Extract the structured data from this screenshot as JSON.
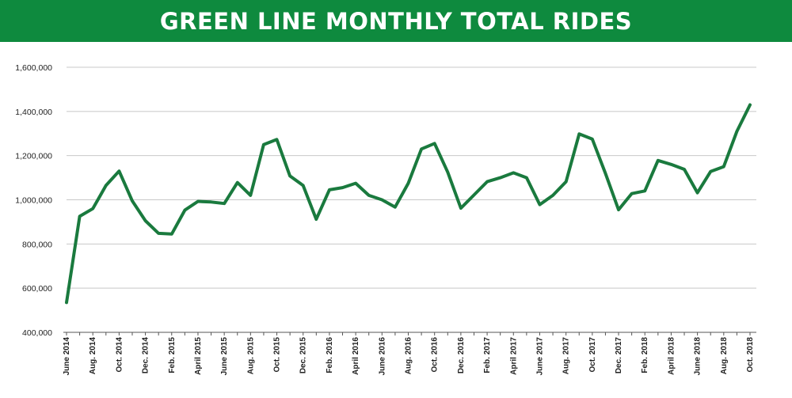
{
  "chart_data": {
    "type": "line",
    "title": "GREEN LINE MONTHLY TOTAL RIDES",
    "xlabel": "",
    "ylabel": "",
    "ylim": [
      400000,
      1600000
    ],
    "y_ticks": [
      400000,
      600000,
      800000,
      1000000,
      1200000,
      1400000,
      1600000
    ],
    "y_tick_labels": [
      "400,000",
      "600,000",
      "800,000",
      "1,000,000",
      "1,200,000",
      "1,400,000",
      "1,600,000"
    ],
    "grid": "horizontal",
    "line_color": "#1a7a3e",
    "header_color": "#0e8a3e",
    "x_tick_labels": [
      "June 2014",
      "Aug. 2014",
      "Oct. 2014",
      "Dec. 2014",
      "Feb. 2015",
      "April 2015",
      "June 2015",
      "Aug. 2015",
      "Oct. 2015",
      "Dec. 2015",
      "Feb. 2016",
      "April 2016",
      "June 2016",
      "Aug. 2016",
      "Oct. 2016",
      "Dec. 2016",
      "Feb. 2017",
      "April 2017",
      "June 2017",
      "Aug. 2017",
      "Oct. 2017",
      "Dec. 2017",
      "Feb. 2018",
      "April 2018",
      "June 2018",
      "Aug. 2018",
      "Oct. 2018"
    ],
    "x": [
      "2014-06",
      "2014-07",
      "2014-08",
      "2014-09",
      "2014-10",
      "2014-11",
      "2014-12",
      "2015-01",
      "2015-02",
      "2015-03",
      "2015-04",
      "2015-05",
      "2015-06",
      "2015-07",
      "2015-08",
      "2015-09",
      "2015-10",
      "2015-11",
      "2015-12",
      "2016-01",
      "2016-02",
      "2016-03",
      "2016-04",
      "2016-05",
      "2016-06",
      "2016-07",
      "2016-08",
      "2016-09",
      "2016-10",
      "2016-11",
      "2016-12",
      "2017-01",
      "2017-02",
      "2017-03",
      "2017-04",
      "2017-05",
      "2017-06",
      "2017-07",
      "2017-08",
      "2017-09",
      "2017-10",
      "2017-11",
      "2017-12",
      "2018-01",
      "2018-02",
      "2018-03",
      "2018-04",
      "2018-05",
      "2018-06",
      "2018-07",
      "2018-08",
      "2018-09",
      "2018-10"
    ],
    "values": [
      535000,
      925000,
      960000,
      1065000,
      1130000,
      995000,
      905000,
      848000,
      845000,
      953000,
      993000,
      990000,
      983000,
      1078000,
      1020000,
      1250000,
      1273000,
      1108000,
      1065000,
      912000,
      1045000,
      1055000,
      1075000,
      1020000,
      1000000,
      967000,
      1075000,
      1230000,
      1255000,
      1125000,
      962000,
      1022000,
      1082000,
      1100000,
      1122000,
      1100000,
      978000,
      1020000,
      1082000,
      1298000,
      1275000,
      1120000,
      955000,
      1028000,
      1040000,
      1178000,
      1160000,
      1138000,
      1032000,
      1128000,
      1150000,
      1310000,
      1430000
    ]
  }
}
